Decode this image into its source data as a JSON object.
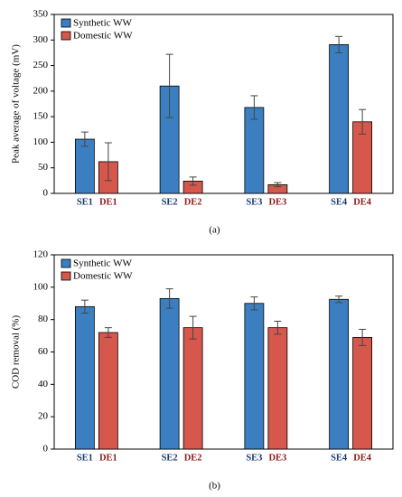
{
  "chart_data": [
    {
      "type": "bar",
      "ylabel": "Peak average of voltage (mV)",
      "panel_label": "(a)",
      "ylim": [
        0,
        350
      ],
      "yticks": [
        0,
        50,
        100,
        150,
        200,
        250,
        300,
        350
      ],
      "legend": "upper left",
      "series": [
        {
          "name": "Synthetic WW",
          "color": "#3b7fc0",
          "labels": [
            "SE1",
            "SE2",
            "SE3",
            "SE4"
          ],
          "values": [
            106,
            210,
            168,
            291
          ],
          "errors": [
            14,
            62,
            23,
            16
          ]
        },
        {
          "name": "Domestic WW",
          "color": "#d6574c",
          "labels": [
            "DE1",
            "DE2",
            "DE3",
            "DE4"
          ],
          "values": [
            62,
            24,
            17,
            140
          ],
          "errors": [
            37,
            8,
            4,
            24
          ]
        }
      ]
    },
    {
      "type": "bar",
      "ylabel": "COD removal (%)",
      "panel_label": "(b)",
      "ylim": [
        0,
        120
      ],
      "yticks": [
        0,
        20,
        40,
        60,
        80,
        100,
        120
      ],
      "legend": "upper left",
      "series": [
        {
          "name": "Synthetic WW",
          "color": "#3b7fc0",
          "labels": [
            "SE1",
            "SE2",
            "SE3",
            "SE4"
          ],
          "values": [
            88,
            93,
            90,
            92.5
          ],
          "errors": [
            4,
            6,
            4,
            2
          ]
        },
        {
          "name": "Domestic WW",
          "color": "#d6574c",
          "labels": [
            "DE1",
            "DE2",
            "DE3",
            "DE4"
          ],
          "values": [
            72,
            75,
            75,
            69
          ],
          "errors": [
            3,
            7,
            4,
            5
          ]
        }
      ]
    }
  ]
}
